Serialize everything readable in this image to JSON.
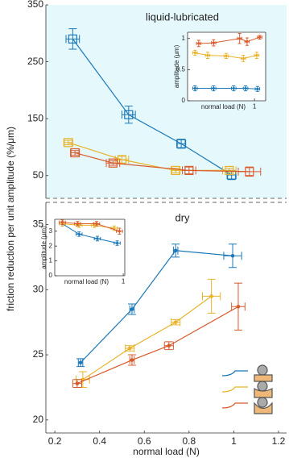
{
  "chart_data": [
    {
      "type": "errorbar",
      "annotation": "liquid-lubricated",
      "ylabel": "friction reduction per unit amplitude (%/μm)",
      "xlim": [
        0.16,
        1.236
      ],
      "ylim": [
        10,
        350
      ],
      "yticks": [
        50,
        150,
        250,
        350
      ],
      "background": "#e5f8fc",
      "marker": "square",
      "series": [
        {
          "color": "#1a78b8",
          "x": [
            0.28,
            0.53,
            0.765,
            0.99
          ],
          "values": [
            290,
            157,
            106,
            51
          ],
          "errors": [
            18,
            15,
            8,
            8
          ],
          "xerrors": [
            0.03,
            0.03,
            0.02,
            0.02
          ]
        },
        {
          "color": "#e8b32a",
          "x": [
            0.26,
            0.5,
            0.74,
            0.98
          ],
          "values": [
            108,
            78,
            59,
            59
          ],
          "errors": [
            4,
            6,
            4,
            4
          ],
          "xerrors": [
            0.02,
            0.03,
            0.02,
            0.03
          ]
        },
        {
          "color": "#d95a2b",
          "x": [
            0.29,
            0.46,
            0.8,
            1.07
          ],
          "values": [
            90,
            72,
            59,
            57
          ],
          "errors": [
            4,
            4,
            6,
            8
          ],
          "xerrors": [
            0.02,
            0.03,
            0.03,
            0.05
          ]
        }
      ]
    },
    {
      "type": "errorbar",
      "ylabel": "amplitude (μm)",
      "xlabel": "normal load (N)",
      "xlim": [
        0.1,
        1.15
      ],
      "ylim": [
        0,
        1.1
      ],
      "xticks": [
        1
      ],
      "yticks": [
        0,
        0.5,
        1
      ],
      "background": "#ffffff",
      "marker": "dot",
      "series": [
        {
          "color": "#1a78b8",
          "x": [
            0.2,
            0.45,
            0.72,
            0.88,
            1.04
          ],
          "values": [
            0.2,
            0.2,
            0.2,
            0.2,
            0.19
          ],
          "errors": [
            0.04,
            0.04,
            0.04,
            0.04,
            0.04
          ],
          "xerrors": [
            0.03,
            0.03,
            0.03,
            0.03,
            0.03
          ]
        },
        {
          "color": "#e8b32a",
          "x": [
            0.2,
            0.37,
            0.62,
            0.85,
            1.03
          ],
          "values": [
            0.77,
            0.73,
            0.72,
            0.68,
            0.73
          ],
          "errors": [
            0.04,
            0.05,
            0.04,
            0.05,
            0.05
          ],
          "xerrors": [
            0.03,
            0.03,
            0.03,
            0.03,
            0.03
          ]
        },
        {
          "color": "#d95a2b",
          "x": [
            0.25,
            0.45,
            0.8,
            0.9,
            1.07
          ],
          "values": [
            0.92,
            0.93,
            1.0,
            0.95,
            1.02
          ],
          "errors": [
            0.05,
            0.05,
            0.08,
            0.06,
            0.03
          ],
          "xerrors": [
            0.03,
            0.03,
            0.03,
            0.03,
            0.03
          ]
        }
      ]
    },
    {
      "type": "errorbar",
      "annotation": "dry",
      "xlabel": "normal load (N)",
      "xlim": [
        0.16,
        1.236
      ],
      "ylim": [
        19,
        36.7
      ],
      "xticks": [
        0.2,
        0.4,
        0.6,
        0.8,
        1,
        1.2
      ],
      "yticks": [
        20,
        25,
        30,
        35
      ],
      "background": "#ffffff",
      "marker": "dot",
      "series": [
        {
          "color": "#1a78b8",
          "x": [
            0.315,
            0.545,
            0.74,
            0.995
          ],
          "values": [
            24.4,
            28.5,
            33.0,
            32.6
          ],
          "errors": [
            0.3,
            0.4,
            0.5,
            0.9
          ],
          "xerrors": [
            0.01,
            0.01,
            0.01,
            0.04
          ]
        },
        {
          "color": "#e8b32a",
          "x": [
            0.325,
            0.535,
            0.74,
            0.9
          ],
          "values": [
            23.1,
            25.5,
            27.5,
            29.5
          ],
          "errors": [
            0.6,
            0.2,
            0.2,
            1.3
          ],
          "xerrors": [
            0.03,
            0.02,
            0.02,
            0.04
          ]
        },
        {
          "color": "#d95a2b",
          "x": [
            0.3,
            0.545,
            0.71,
            1.02
          ],
          "values": [
            22.8,
            24.6,
            25.7,
            28.7
          ],
          "errors": [
            0.3,
            0.4,
            0.3,
            1.8
          ],
          "xerrors": [
            0.02,
            0.01,
            0.02,
            0.03
          ]
        }
      ]
    },
    {
      "type": "errorbar",
      "ylabel": "amplitude (μm)",
      "xlabel": "normal load (N)",
      "xlim": [
        0.1,
        1.02
      ],
      "ylim": [
        0,
        3.8
      ],
      "xticks": [
        1
      ],
      "yticks": [
        0,
        1,
        2,
        3
      ],
      "background": "#ffffff",
      "marker": "dot",
      "series": [
        {
          "color": "#1a78b8",
          "x": [
            0.2,
            0.42,
            0.66,
            0.92
          ],
          "values": [
            3.5,
            2.8,
            2.5,
            2.2
          ],
          "errors": [
            0.15,
            0.15,
            0.15,
            0.15
          ],
          "xerrors": [
            0.04,
            0.04,
            0.04,
            0.04
          ]
        },
        {
          "color": "#e8b32a",
          "x": [
            0.2,
            0.42,
            0.62,
            0.88
          ],
          "values": [
            3.5,
            3.4,
            3.4,
            3.2
          ],
          "errors": [
            0.15,
            0.15,
            0.15,
            0.15
          ],
          "xerrors": [
            0.04,
            0.04,
            0.04,
            0.04
          ]
        },
        {
          "color": "#d95a2b",
          "x": [
            0.2,
            0.4,
            0.65,
            0.95
          ],
          "values": [
            3.6,
            3.5,
            3.5,
            3.0
          ],
          "errors": [
            0.15,
            0.15,
            0.15,
            0.2
          ],
          "xerrors": [
            0.04,
            0.04,
            0.04,
            0.04
          ]
        }
      ]
    }
  ]
}
